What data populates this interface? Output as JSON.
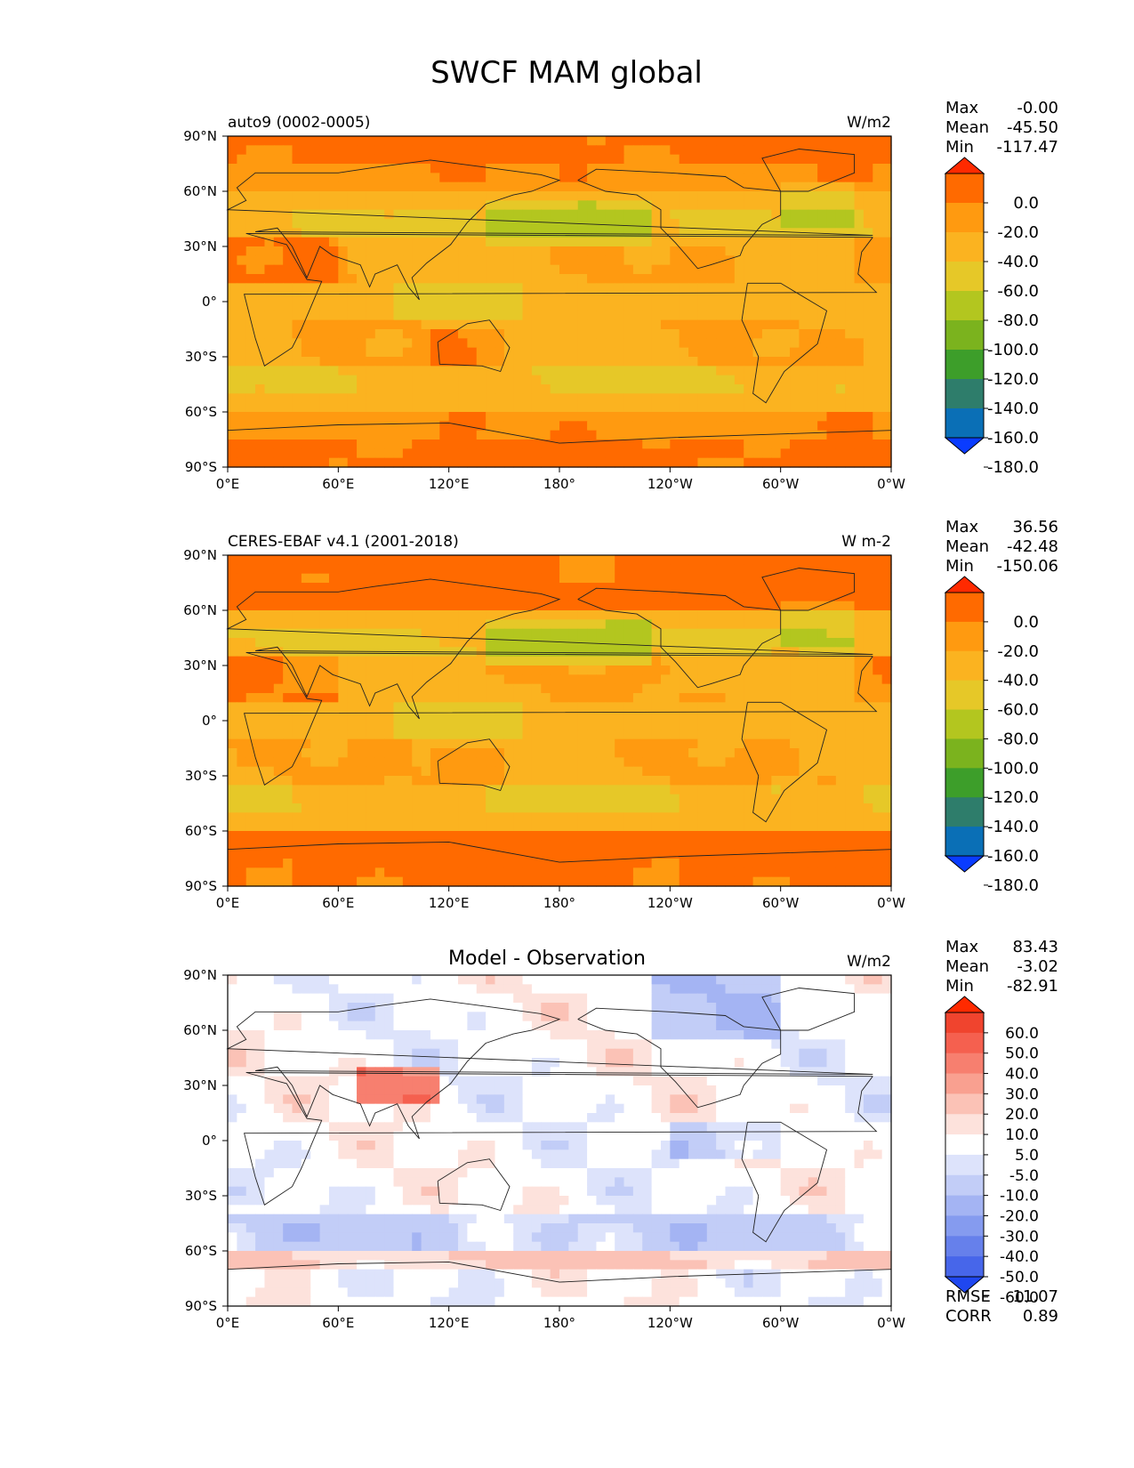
{
  "figure": {
    "title": "SWCF MAM global"
  },
  "chart_data": [
    {
      "type": "heatmap",
      "subtitle": "auto9 (0002-0005)",
      "units": "W/m2",
      "stats": [
        {
          "label": "Max",
          "value": "-0.00"
        },
        {
          "label": "Mean",
          "value": "-45.50"
        },
        {
          "label": "Min",
          "value": "-117.47"
        }
      ],
      "xticks": [
        "0°E",
        "60°E",
        "120°E",
        "180°",
        "120°W",
        "60°W",
        "0°W"
      ],
      "yticks": [
        "90°N",
        "60°N",
        "30°N",
        "0°",
        "30°S",
        "60°S",
        "90°S"
      ],
      "xlim": [
        0,
        360
      ],
      "ylim": [
        -90,
        90
      ],
      "colorbar": {
        "labels": [
          "0.0",
          "-20.0",
          "-40.0",
          "-60.0",
          "-80.0",
          "-100.0",
          "-120.0",
          "-140.0",
          "-160.0",
          "-180.0"
        ],
        "colors": [
          "#ff2a00",
          "#ff6a00",
          "#ff9a10",
          "#fbb320",
          "#e6c828",
          "#b3c61f",
          "#7bb31e",
          "#3d9e2a",
          "#2e7d6b",
          "#0a6fb6",
          "#0a3cff"
        ],
        "extend": "both"
      }
    },
    {
      "type": "heatmap",
      "subtitle": "CERES-EBAF v4.1 (2001-2018)",
      "units": "W m-2",
      "stats": [
        {
          "label": "Max",
          "value": "36.56"
        },
        {
          "label": "Mean",
          "value": "-42.48"
        },
        {
          "label": "Min",
          "value": "-150.06"
        }
      ],
      "xticks": [
        "0°E",
        "60°E",
        "120°E",
        "180°",
        "120°W",
        "60°W",
        "0°W"
      ],
      "yticks": [
        "90°N",
        "60°N",
        "30°N",
        "0°",
        "30°S",
        "60°S",
        "90°S"
      ],
      "xlim": [
        0,
        360
      ],
      "ylim": [
        -90,
        90
      ],
      "colorbar": {
        "labels": [
          "0.0",
          "-20.0",
          "-40.0",
          "-60.0",
          "-80.0",
          "-100.0",
          "-120.0",
          "-140.0",
          "-160.0",
          "-180.0"
        ],
        "colors": [
          "#ff2a00",
          "#ff6a00",
          "#ff9a10",
          "#fbb320",
          "#e6c828",
          "#b3c61f",
          "#7bb31e",
          "#3d9e2a",
          "#2e7d6b",
          "#0a6fb6",
          "#0a3cff"
        ],
        "extend": "both"
      }
    },
    {
      "type": "heatmap",
      "subtitle": "Model - Observation",
      "units": "W/m2",
      "stats": [
        {
          "label": "Max",
          "value": "83.43"
        },
        {
          "label": "Mean",
          "value": "-3.02"
        },
        {
          "label": "Min",
          "value": "-82.91"
        }
      ],
      "metrics": [
        {
          "label": "RMSE",
          "value": "11.07"
        },
        {
          "label": "CORR",
          "value": "0.89"
        }
      ],
      "xticks": [
        "0°E",
        "60°E",
        "120°E",
        "180°",
        "120°W",
        "60°W",
        "0°W"
      ],
      "yticks": [
        "90°N",
        "60°N",
        "30°N",
        "0°",
        "30°S",
        "60°S",
        "90°S"
      ],
      "xlim": [
        0,
        360
      ],
      "ylim": [
        -90,
        90
      ],
      "colorbar": {
        "labels": [
          "60.0",
          "50.0",
          "40.0",
          "30.0",
          "20.0",
          "10.0",
          "5.0",
          "-5.0",
          "-10.0",
          "-20.0",
          "-30.0",
          "-40.0",
          "-50.0",
          "-60.0"
        ],
        "colors": [
          "#ff2a00",
          "#f0442e",
          "#f5604f",
          "#f77f6f",
          "#f9a090",
          "#fbc2b6",
          "#fde2dc",
          "#ffffff",
          "#dde3fb",
          "#c2cdf7",
          "#a4b4f3",
          "#859bef",
          "#6680eb",
          "#4766ea",
          "#1f47f0"
        ],
        "extend": "both"
      }
    }
  ]
}
